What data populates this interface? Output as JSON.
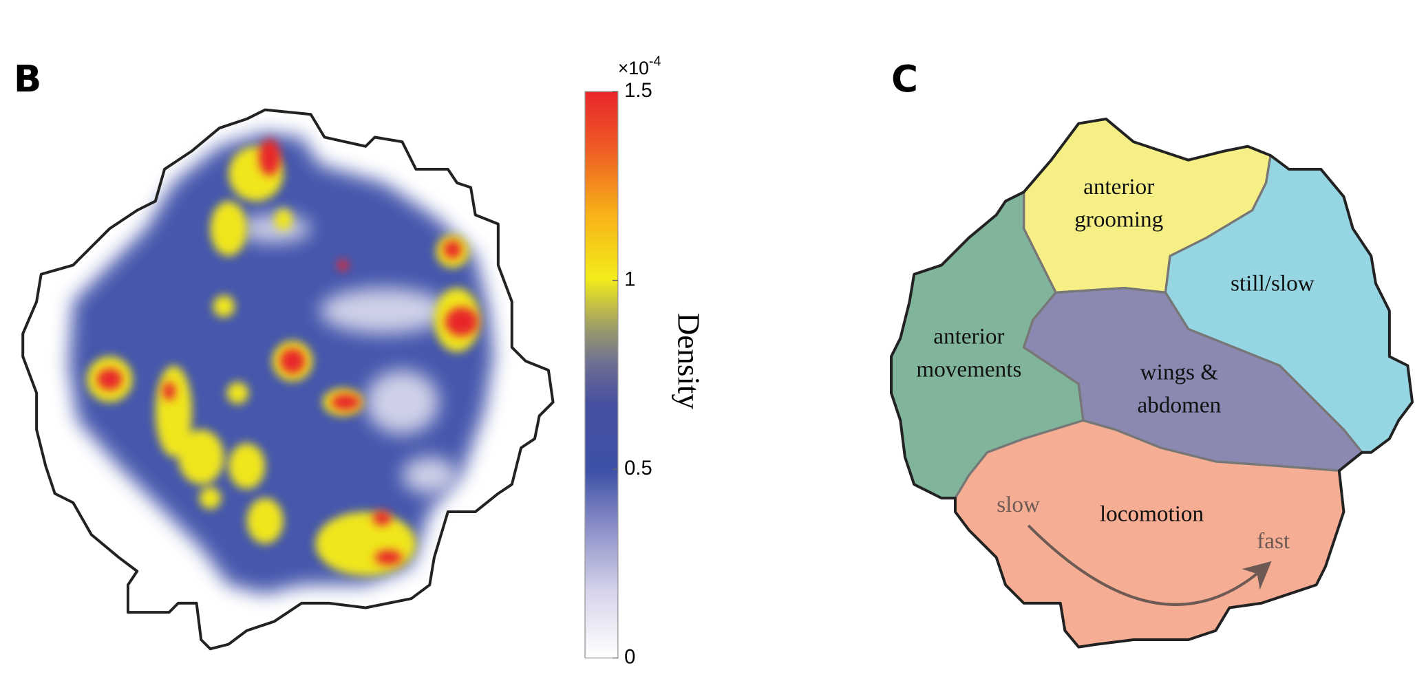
{
  "panels": [
    {
      "label": "B",
      "colorbar": {
        "label": "Density",
        "multiplier": "×10",
        "exponent": "-4",
        "lim": [
          0,
          1.5
        ],
        "ticks": [
          0,
          0.5,
          1,
          1.5
        ]
      }
    },
    {
      "label": "C",
      "regions": [
        {
          "lines": [
            "anterior",
            "grooming"
          ]
        },
        {
          "lines": [
            "still/slow"
          ]
        },
        {
          "lines": [
            "anterior",
            "movements"
          ]
        },
        {
          "lines": [
            "wings &",
            "abdomen"
          ]
        },
        {
          "lines": [
            "locomotion"
          ]
        }
      ],
      "arrow": {
        "start": "slow",
        "end": "fast"
      }
    }
  ]
}
